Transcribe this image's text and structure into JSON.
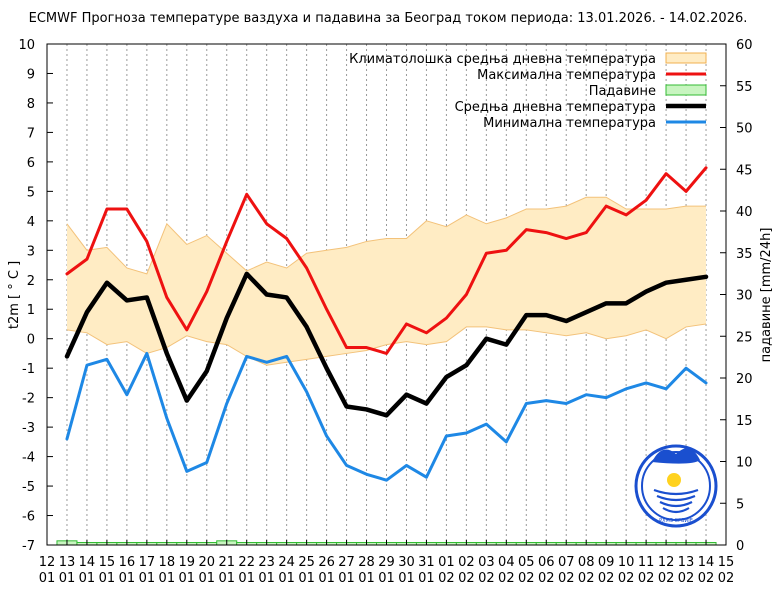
{
  "chart_data": {
    "type": "line",
    "title": "ECMWF Прогноза температуре ваздуха и падавина за Београд током периода: 13.01.2026. - 14.02.2026.",
    "ylabel": "t2m [ ° C ]",
    "y2label": "падавине [mm/24h]",
    "ylim": [
      -7,
      10
    ],
    "y2lim": [
      0,
      60
    ],
    "yticks": [
      -7,
      -6,
      -5,
      -4,
      -3,
      -2,
      -1,
      0,
      1,
      2,
      3,
      4,
      5,
      6,
      7,
      8,
      9,
      10
    ],
    "y2ticks": [
      0,
      5,
      10,
      15,
      20,
      25,
      30,
      35,
      40,
      45,
      50,
      55,
      60
    ],
    "x_days": [
      "12",
      "13",
      "14",
      "15",
      "16",
      "17",
      "18",
      "19",
      "20",
      "21",
      "22",
      "23",
      "24",
      "25",
      "26",
      "27",
      "28",
      "29",
      "30",
      "31",
      "01",
      "02",
      "03",
      "04",
      "05",
      "06",
      "07",
      "08",
      "09",
      "10",
      "11",
      "12",
      "13",
      "14",
      "15"
    ],
    "x_months": [
      "01",
      "01",
      "01",
      "01",
      "01",
      "01",
      "01",
      "01",
      "01",
      "01",
      "01",
      "01",
      "01",
      "01",
      "01",
      "01",
      "01",
      "01",
      "01",
      "01",
      "02",
      "02",
      "02",
      "02",
      "02",
      "02",
      "02",
      "02",
      "02",
      "02",
      "02",
      "02",
      "02",
      "02",
      "02"
    ],
    "grid": "vertical dashed",
    "legend_position": "top-right",
    "legend": [
      {
        "label": "Климатолошка средња дневна температура",
        "color": "#ffecc4",
        "stroke": "#f0b050",
        "kind": "band"
      },
      {
        "label": "Максимална температура",
        "color": "#ee1111",
        "kind": "line"
      },
      {
        "label": "Падавине",
        "color": "#c8f5c0",
        "stroke": "#33bb33",
        "kind": "bar"
      },
      {
        "label": "Средња дневна температура",
        "color": "#000000",
        "kind": "line"
      },
      {
        "label": "Минимална температура",
        "color": "#1e88e5",
        "kind": "line"
      }
    ],
    "climate_upper": [
      3.9,
      3.0,
      3.1,
      2.4,
      2.2,
      3.9,
      3.2,
      3.5,
      2.9,
      2.3,
      2.6,
      2.4,
      2.9,
      3.0,
      3.1,
      3.3,
      3.4,
      3.4,
      4.0,
      3.8,
      4.2,
      3.9,
      4.1,
      4.4,
      4.4,
      4.5,
      4.8,
      4.8,
      4.4,
      4.4,
      4.4,
      4.5,
      4.5
    ],
    "climate_lower": [
      0.3,
      0.2,
      -0.2,
      -0.1,
      -0.5,
      -0.3,
      0.1,
      -0.1,
      -0.2,
      -0.6,
      -0.9,
      -0.8,
      -0.7,
      -0.6,
      -0.5,
      -0.4,
      -0.2,
      -0.1,
      -0.2,
      -0.1,
      0.4,
      0.4,
      0.3,
      0.3,
      0.2,
      0.1,
      0.2,
      0.0,
      0.1,
      0.3,
      0.0,
      0.4,
      0.5
    ],
    "max_temp": [
      2.2,
      2.7,
      4.4,
      4.4,
      3.3,
      1.4,
      0.3,
      1.6,
      3.3,
      4.9,
      3.9,
      3.4,
      2.4,
      1.0,
      -0.3,
      -0.3,
      -0.5,
      0.5,
      0.2,
      0.7,
      1.5,
      2.9,
      3.0,
      3.7,
      3.6,
      3.4,
      3.6,
      4.5,
      4.2,
      4.7,
      5.6,
      5.0,
      5.8
    ],
    "mean_temp": [
      -0.6,
      0.9,
      1.9,
      1.3,
      1.4,
      -0.5,
      -2.1,
      -1.1,
      0.7,
      2.2,
      1.5,
      1.4,
      0.4,
      -1.0,
      -2.3,
      -2.4,
      -2.6,
      -1.9,
      -2.2,
      -1.3,
      -0.9,
      0.0,
      -0.2,
      0.8,
      0.8,
      0.6,
      0.9,
      1.2,
      1.2,
      1.6,
      1.9,
      2.0,
      2.1
    ],
    "min_temp": [
      -3.4,
      -0.9,
      -0.7,
      -1.9,
      -0.5,
      -2.7,
      -4.5,
      -4.2,
      -2.2,
      -0.6,
      -0.8,
      -0.6,
      -1.8,
      -3.3,
      -4.3,
      -4.6,
      -4.8,
      -4.3,
      -4.7,
      -3.3,
      -3.2,
      -2.9,
      -3.5,
      -2.2,
      -2.1,
      -2.2,
      -1.9,
      -2.0,
      -1.7,
      -1.5,
      -1.7,
      -1.0,
      -1.5
    ],
    "precipitation": [
      0.5,
      0.3,
      0.3,
      0.3,
      0.3,
      0.3,
      0.3,
      0.3,
      0.5,
      0.3,
      0.3,
      0.3,
      0.3,
      0.3,
      0.3,
      0.3,
      0.3,
      0.3,
      0.3,
      0.3,
      0.3,
      0.3,
      0.3,
      0.3,
      0.3,
      0.3,
      0.3,
      0.3,
      0.3,
      0.3,
      0.3,
      0.3,
      0.3
    ]
  },
  "logo": {
    "name": "rhmz-logo-icon",
    "caption": "РХМЗ СРБИЈЕ",
    "colors": {
      "ring": "#1a4fcf",
      "sun": "#ffd21f"
    }
  }
}
